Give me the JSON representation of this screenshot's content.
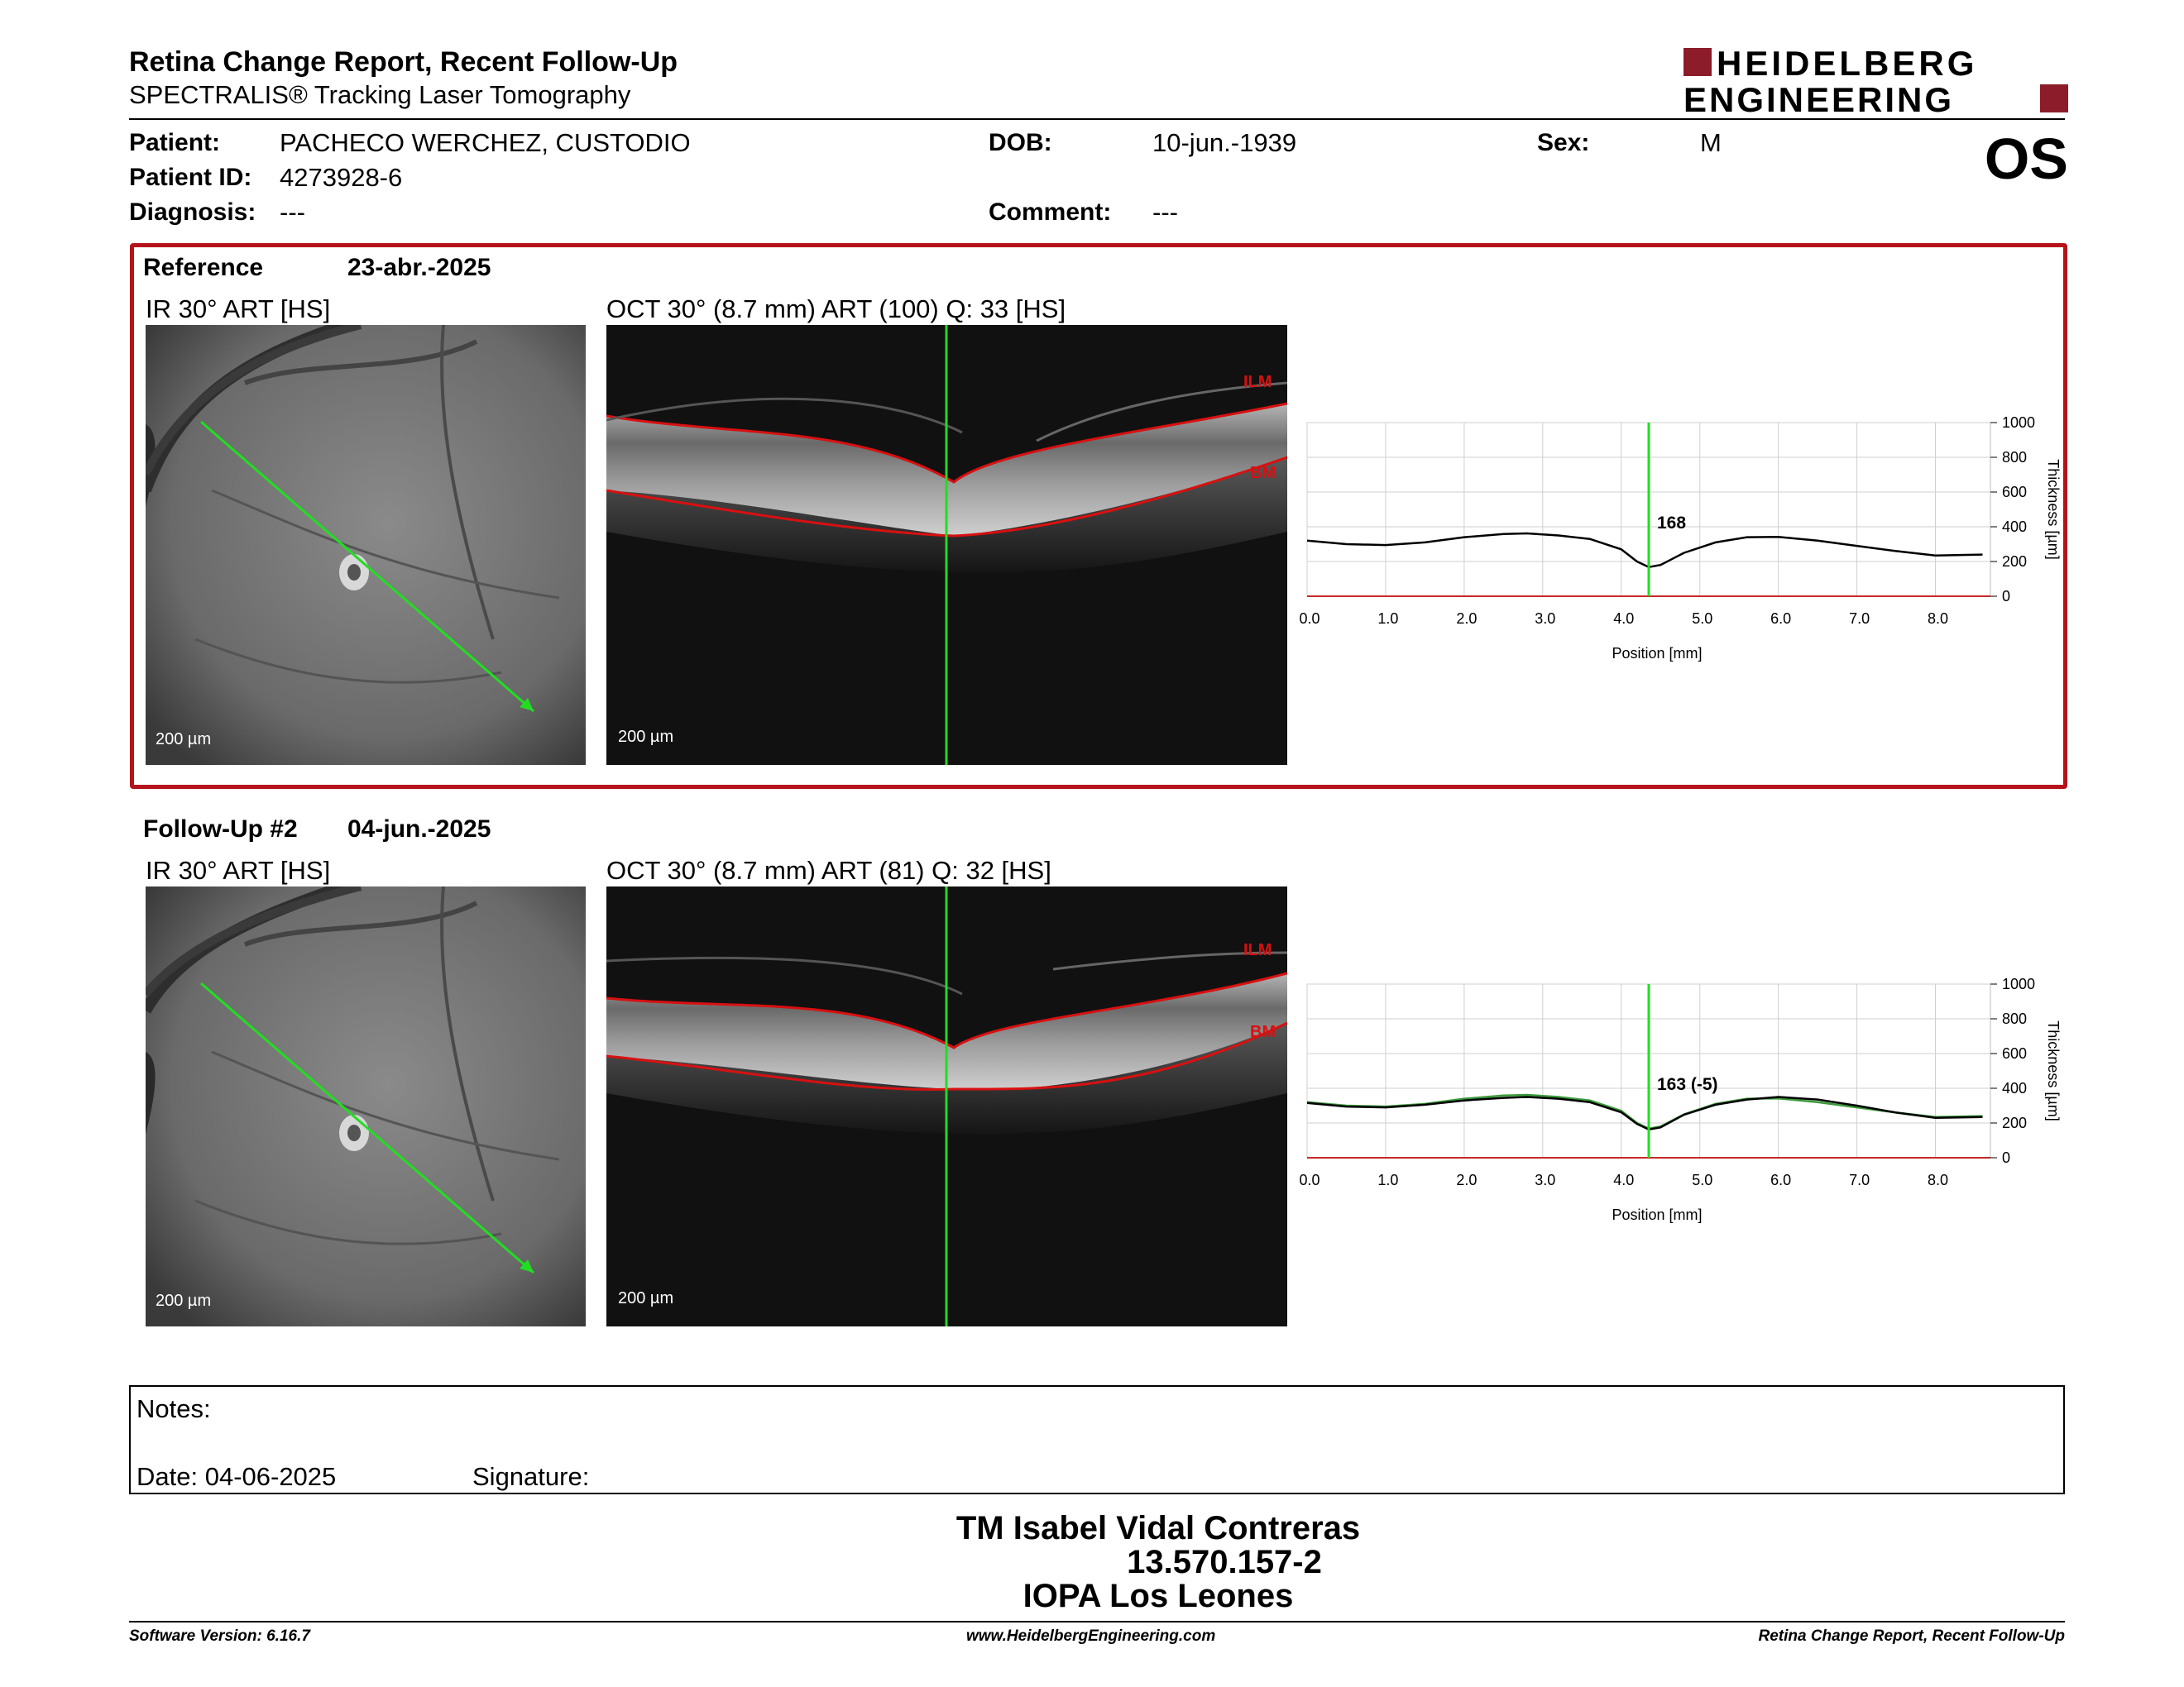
{
  "header": {
    "title": "Retina Change Report, Recent Follow-Up",
    "subtitle": "SPECTRALIS® Tracking Laser Tomography",
    "brand_line1": "HEIDELBERG",
    "brand_line2": "ENGINEERING",
    "eye": "OS"
  },
  "patient": {
    "patient_label": "Patient:",
    "patient_value": "PACHECO WERCHEZ, CUSTODIO",
    "id_label": "Patient ID:",
    "id_value": "4273928-6",
    "diagnosis_label": "Diagnosis:",
    "diagnosis_value": "---",
    "dob_label": "DOB:",
    "dob_value": "10-jun.-1939",
    "comment_label": "Comment:",
    "comment_value": "---",
    "sex_label": "Sex:",
    "sex_value": "M"
  },
  "reference": {
    "label": "Reference",
    "date": "23-abr.-2025",
    "ir_title": "IR 30° ART [HS]",
    "oct_title": "OCT 30° (8.7 mm) ART (100) Q: 33 [HS]",
    "scale_ir": "200 µm",
    "scale_oct": "200 µm",
    "ilm": "ILM",
    "bm": "BM",
    "readout": "168"
  },
  "followup": {
    "label": "Follow-Up #2",
    "date": "04-jun.-2025",
    "ir_title": "IR 30° ART [HS]",
    "oct_title": "OCT 30° (8.7 mm) ART (81) Q: 32 [HS]",
    "scale_ir": "200 µm",
    "scale_oct": "200 µm",
    "ilm": "ILM",
    "bm": "BM",
    "readout": "163 (-5)"
  },
  "chart_data": [
    {
      "type": "line",
      "xlabel": "Position [mm]",
      "ylabel": "Thickness [µm]",
      "xlim": [
        0,
        8.7
      ],
      "ylim": [
        0,
        1000
      ],
      "x_ticks": [
        "0.0",
        "1.0",
        "2.0",
        "3.0",
        "4.0",
        "5.0",
        "6.0",
        "7.0",
        "8.0"
      ],
      "y_ticks": [
        "0",
        "200",
        "400",
        "600",
        "800",
        "1000"
      ],
      "grid": true,
      "marker_x": 4.35,
      "marker_label": "168",
      "series": [
        {
          "color": "#000000",
          "x": [
            0,
            0.5,
            1.0,
            1.5,
            2.0,
            2.5,
            2.8,
            3.2,
            3.6,
            4.0,
            4.2,
            4.35,
            4.5,
            4.8,
            5.2,
            5.6,
            6.0,
            6.5,
            7.0,
            7.5,
            8.0,
            8.6
          ],
          "y": [
            320,
            300,
            295,
            310,
            340,
            358,
            362,
            350,
            330,
            270,
            200,
            168,
            180,
            250,
            310,
            340,
            342,
            320,
            290,
            260,
            235,
            240
          ]
        }
      ]
    },
    {
      "type": "line",
      "xlabel": "Position [mm]",
      "ylabel": "Thickness [µm]",
      "xlim": [
        0,
        8.7
      ],
      "ylim": [
        0,
        1000
      ],
      "x_ticks": [
        "0.0",
        "1.0",
        "2.0",
        "3.0",
        "4.0",
        "5.0",
        "6.0",
        "7.0",
        "8.0"
      ],
      "y_ticks": [
        "0",
        "200",
        "400",
        "600",
        "800",
        "1000"
      ],
      "grid": true,
      "marker_x": 4.35,
      "marker_label": "163 (-5)",
      "series": [
        {
          "color": "#000000",
          "x": [
            0,
            0.5,
            1.0,
            1.5,
            2.0,
            2.5,
            2.8,
            3.2,
            3.6,
            4.0,
            4.2,
            4.35,
            4.5,
            4.8,
            5.2,
            5.6,
            6.0,
            6.5,
            7.0,
            7.5,
            8.0,
            8.6
          ],
          "y": [
            315,
            295,
            290,
            305,
            330,
            345,
            350,
            340,
            320,
            262,
            195,
            163,
            175,
            248,
            305,
            335,
            350,
            335,
            300,
            260,
            230,
            235
          ]
        },
        {
          "color": "#3a9a3a",
          "x": [
            0,
            0.5,
            1.0,
            1.5,
            2.0,
            2.5,
            2.8,
            3.2,
            3.6,
            4.0,
            4.2,
            4.35,
            4.5,
            4.8,
            5.2,
            5.6,
            6.0,
            6.5,
            7.0,
            7.5,
            8.0,
            8.6
          ],
          "y": [
            320,
            300,
            295,
            310,
            340,
            358,
            362,
            350,
            330,
            270,
            200,
            168,
            180,
            250,
            310,
            340,
            342,
            320,
            290,
            260,
            235,
            240
          ]
        }
      ]
    }
  ],
  "notes": {
    "notes_label": "Notes:",
    "date_label": "Date: 04-06-2025",
    "signature_label": "Signature:"
  },
  "signature": {
    "name": "TM Isabel Vidal Contreras",
    "id": "13.570.157-2",
    "org": "IOPA Los Leones"
  },
  "footer": {
    "software": "Software Version: 6.16.7",
    "website": "www.HeidelbergEngineering.com",
    "report": "Retina Change Report, Recent Follow-Up"
  }
}
